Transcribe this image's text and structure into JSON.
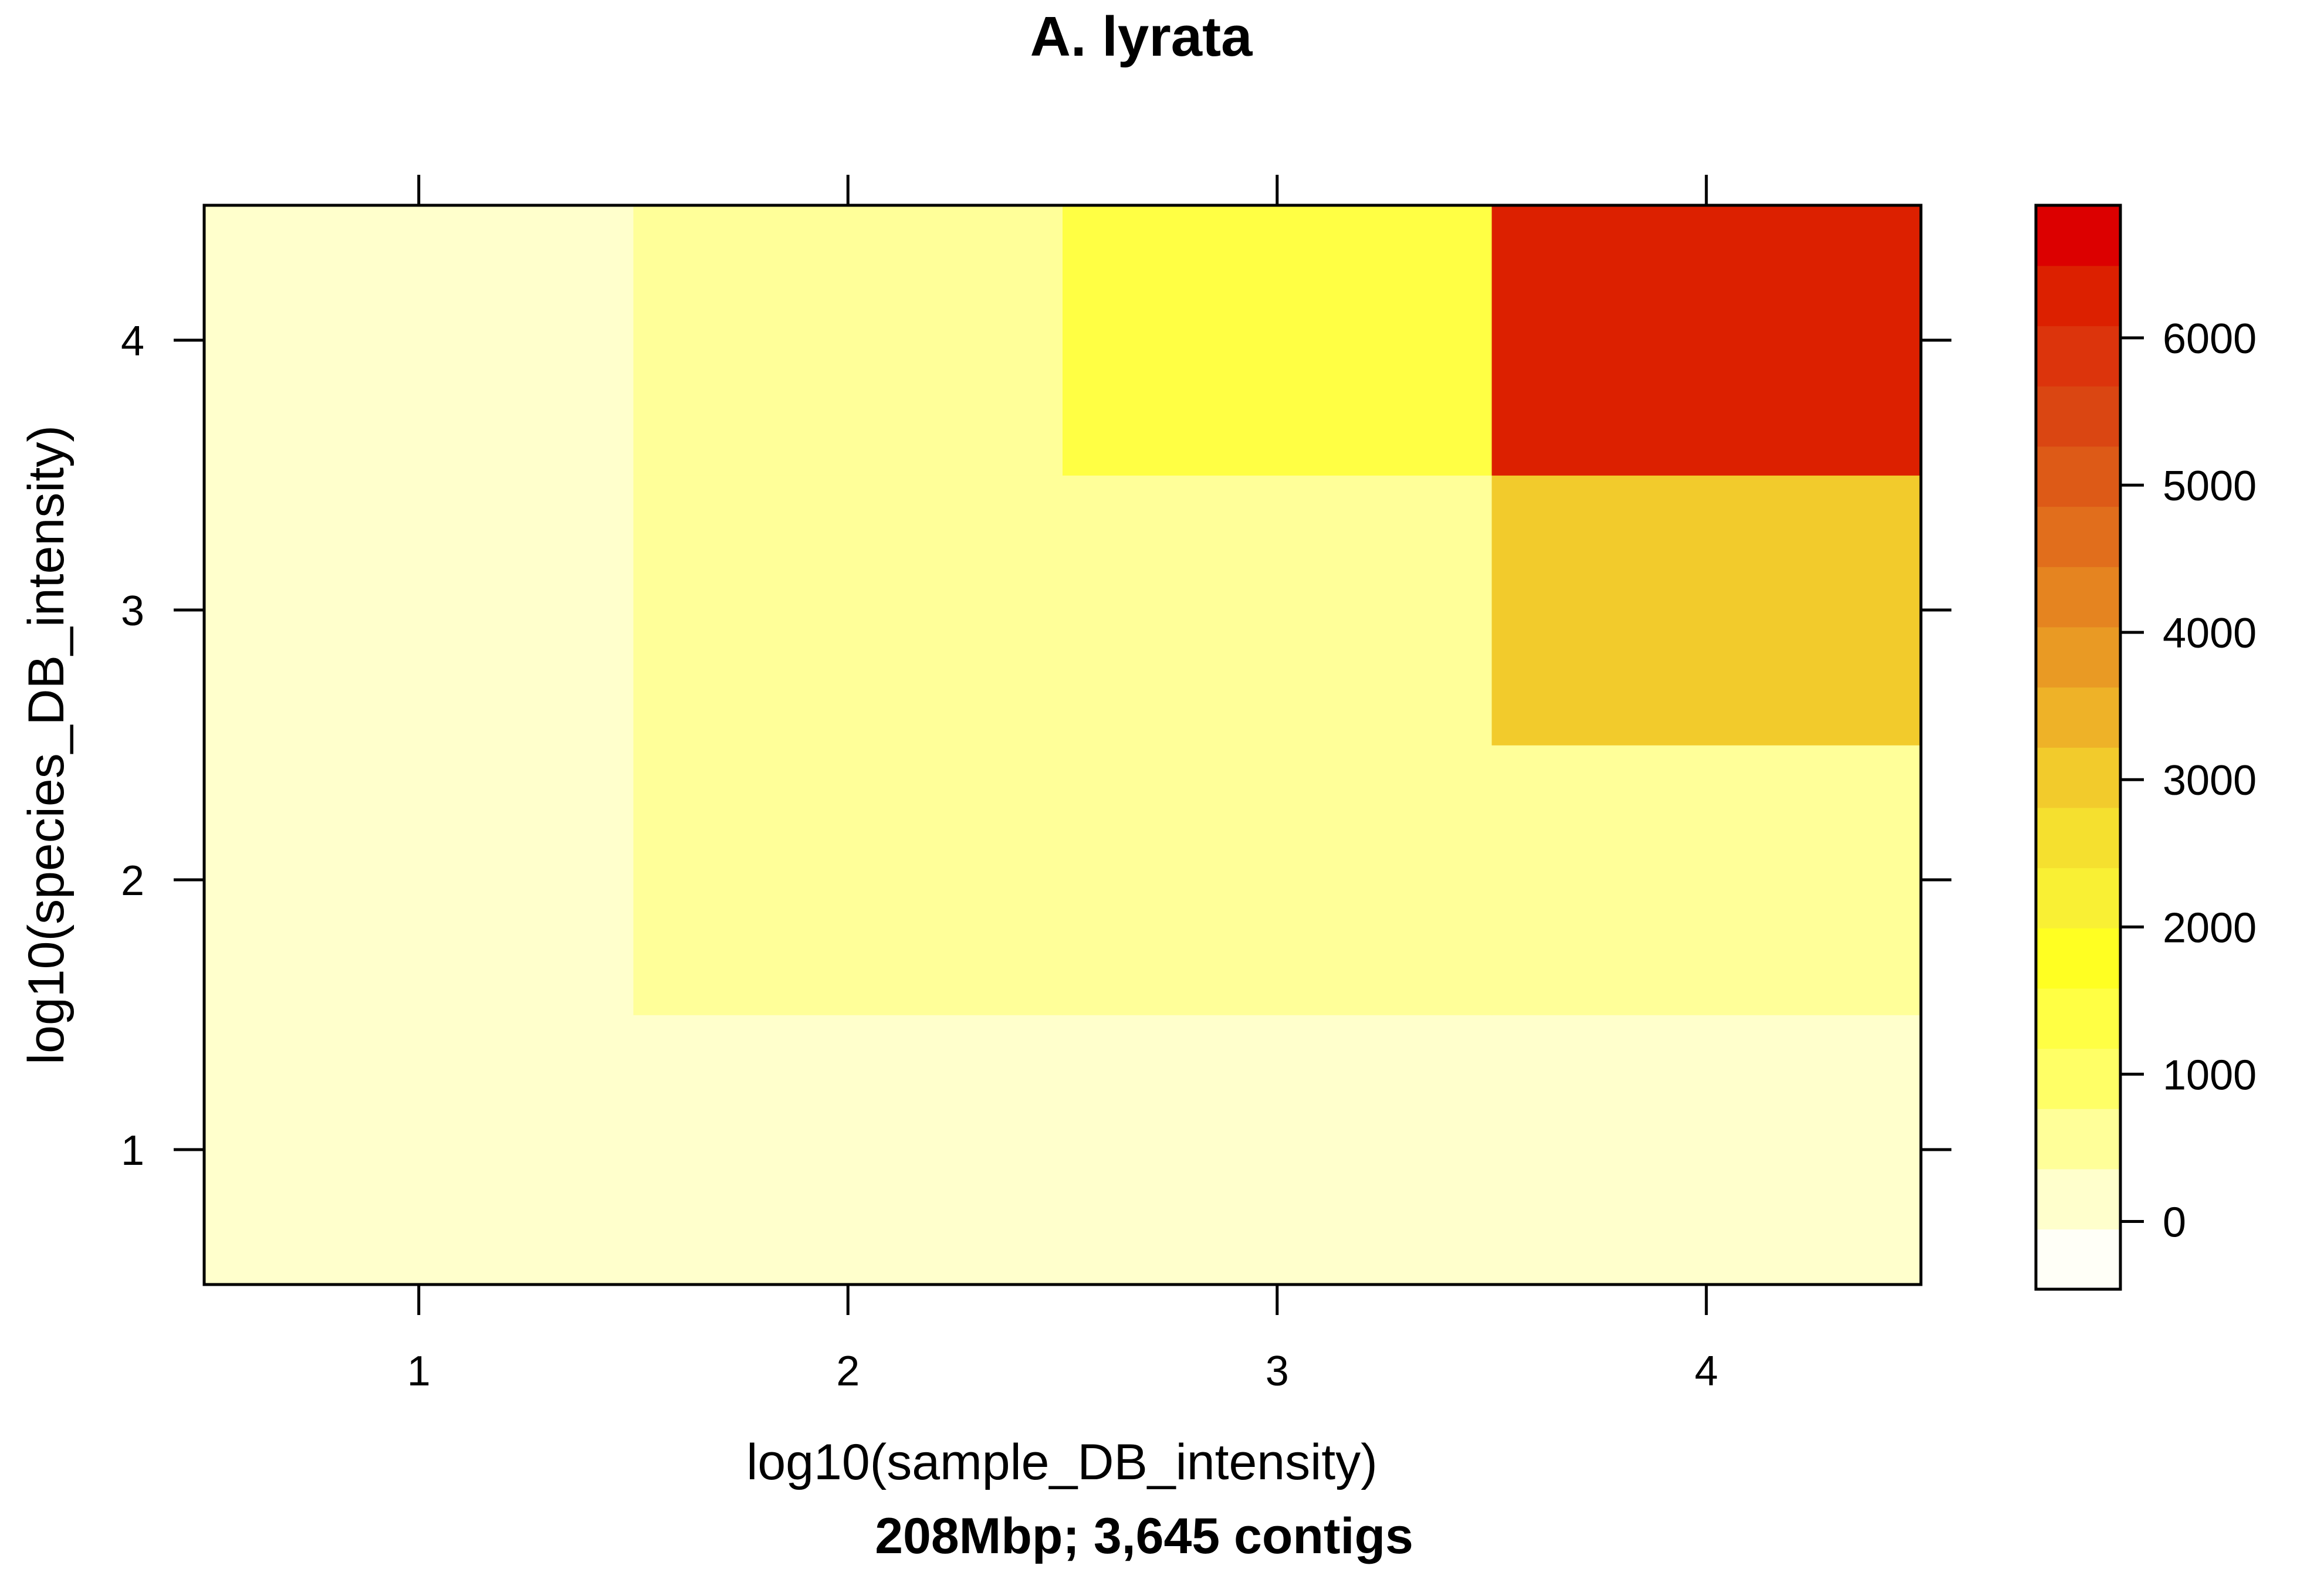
{
  "chart_data": {
    "type": "heatmap",
    "title": "A. lyrata",
    "subtitle": "208Mbp; 3,645 contigs",
    "xlabel": "log10(sample_DB_intensity)",
    "ylabel": "log10(species_DB_intensity)",
    "x": [
      1,
      2,
      3,
      4
    ],
    "y": [
      1,
      2,
      3,
      4
    ],
    "xlim": [
      0.5,
      4.5
    ],
    "ylim": [
      0.5,
      4.5
    ],
    "x_ticks": [
      "1",
      "2",
      "3",
      "4"
    ],
    "y_ticks": [
      "1",
      "2",
      "3",
      "4"
    ],
    "cells": [
      {
        "x": 1,
        "y": 1,
        "value": 0
      },
      {
        "x": 2,
        "y": 1,
        "value": 80
      },
      {
        "x": 3,
        "y": 1,
        "value": 80
      },
      {
        "x": 4,
        "y": 1,
        "value": 80
      },
      {
        "x": 1,
        "y": 2,
        "value": 80
      },
      {
        "x": 2,
        "y": 2,
        "value": 500
      },
      {
        "x": 3,
        "y": 2,
        "value": 500
      },
      {
        "x": 4,
        "y": 2,
        "value": 500
      },
      {
        "x": 1,
        "y": 3,
        "value": 80
      },
      {
        "x": 2,
        "y": 3,
        "value": 500
      },
      {
        "x": 3,
        "y": 3,
        "value": 500
      },
      {
        "x": 4,
        "y": 3,
        "value": 3000
      },
      {
        "x": 1,
        "y": 4,
        "value": 80
      },
      {
        "x": 2,
        "y": 4,
        "value": 500
      },
      {
        "x": 3,
        "y": 4,
        "value": 1200
      },
      {
        "x": 4,
        "y": 4,
        "value": 6200
      }
    ],
    "colorbar": {
      "min": -460,
      "max": 6900,
      "tick_values": [
        0,
        1000,
        2000,
        3000,
        4000,
        5000,
        6000
      ],
      "tick_labels": [
        "0",
        "1000",
        "2000",
        "3000",
        "4000",
        "5000",
        "6000"
      ],
      "colors": [
        "#FFFFF7",
        "#FFFFCC",
        "#FFFF99",
        "#FFFF66",
        "#FFFF44",
        "#FFFF22",
        "#F9F034",
        "#F5E02F",
        "#F2CB2C",
        "#EEB228",
        "#E99A24",
        "#E58420",
        "#E16E1C",
        "#DD5A17",
        "#DA4612",
        "#DC340C",
        "#DC2000",
        "#DC0000"
      ]
    }
  }
}
